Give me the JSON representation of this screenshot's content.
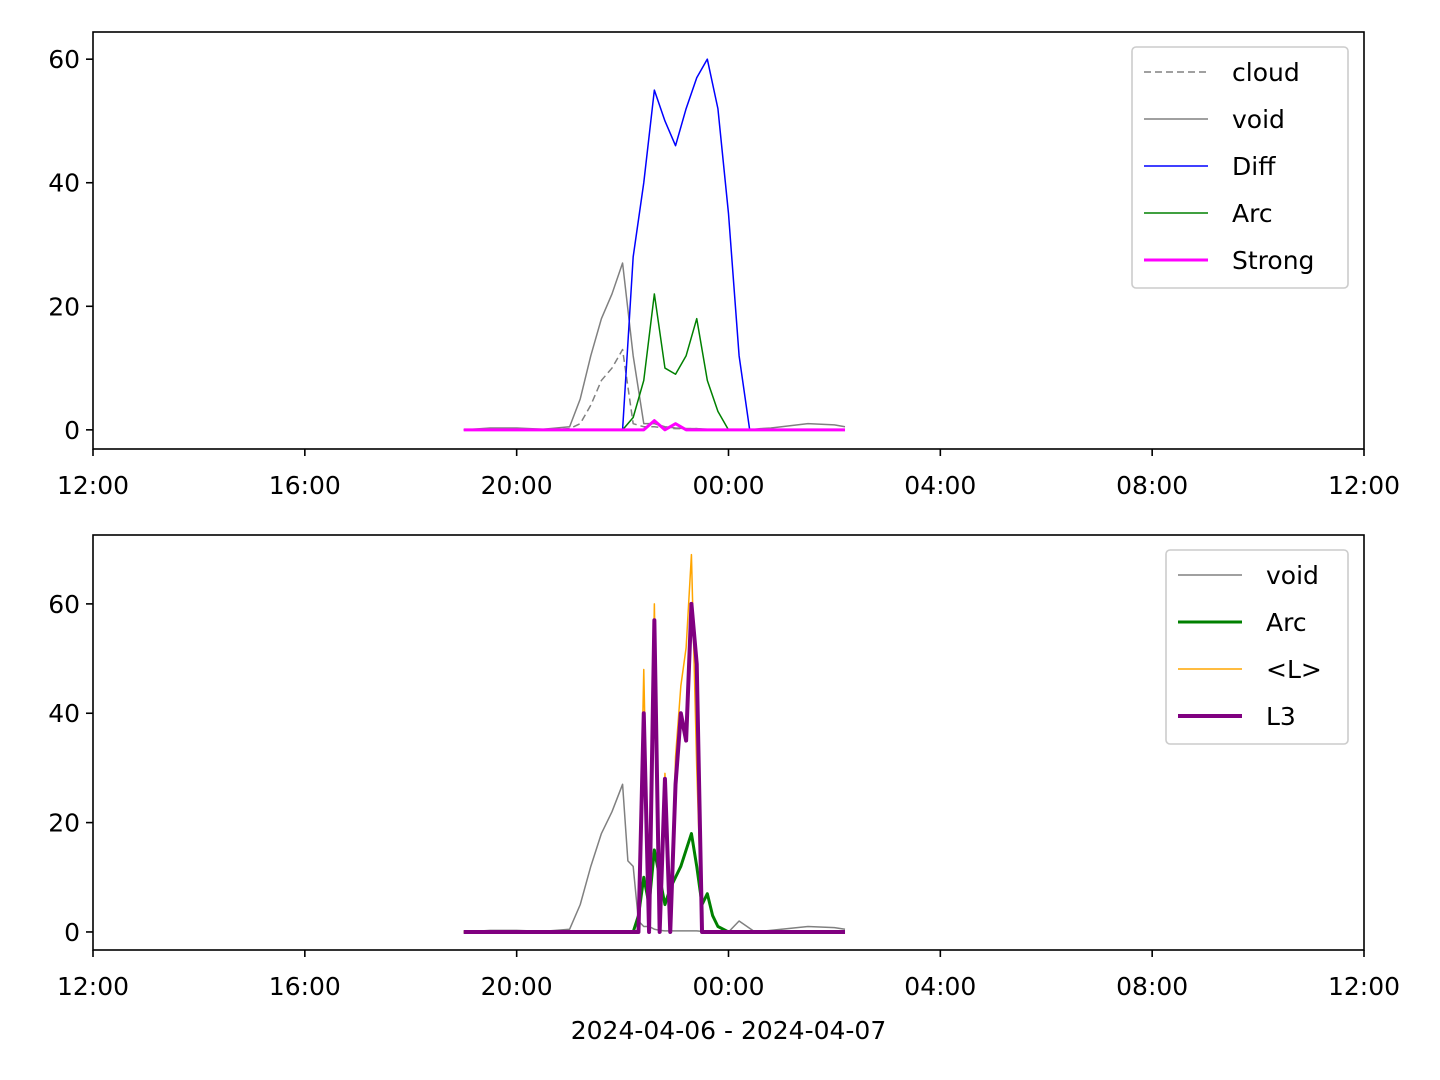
{
  "chart_data": [
    {
      "type": "line",
      "x": [
        7,
        7.5,
        8,
        8.5,
        9,
        9.2,
        9.4,
        9.6,
        9.8,
        10.0,
        10.2,
        10.4,
        10.6,
        10.8,
        11.0,
        11.2,
        11.4,
        11.6,
        11.8,
        12.0,
        12.2,
        12.4,
        12.6,
        12.8,
        13.0,
        13.5,
        14.0,
        14.2
      ],
      "series": [
        {
          "name": "cloud",
          "color": "#808080",
          "dash": true,
          "linewidth": 1.5,
          "values": [
            0,
            0.2,
            0.2,
            0,
            0.2,
            1,
            4,
            8,
            10,
            13,
            1,
            0.5,
            0.5,
            0.3,
            0.2,
            0.2,
            0.2,
            0,
            0,
            0,
            0,
            0,
            0,
            0,
            0,
            0,
            0,
            0
          ]
        },
        {
          "name": "void",
          "color": "#808080",
          "dash": false,
          "linewidth": 1.5,
          "values": [
            0,
            0.3,
            0.3,
            0.1,
            0.5,
            5,
            12,
            18,
            22,
            27,
            12,
            1,
            1,
            0.5,
            0.3,
            0.2,
            0.2,
            0.1,
            0,
            0,
            0,
            0,
            0.2,
            0.3,
            0.5,
            1,
            0.8,
            0.5
          ]
        },
        {
          "name": "Diff",
          "color": "#0000ff",
          "dash": false,
          "linewidth": 1.5,
          "values": [
            null,
            null,
            null,
            null,
            null,
            null,
            null,
            null,
            null,
            0,
            28,
            40,
            55,
            50,
            46,
            52,
            57,
            60,
            52,
            35,
            12,
            0,
            null,
            null,
            null,
            null,
            null,
            null
          ]
        },
        {
          "name": "Arc",
          "color": "#008000",
          "dash": false,
          "linewidth": 1.5,
          "values": [
            null,
            null,
            null,
            null,
            null,
            null,
            null,
            null,
            null,
            0,
            2,
            8,
            22,
            10,
            9,
            12,
            18,
            8,
            3,
            0,
            null,
            null,
            null,
            null,
            null,
            null,
            null,
            null
          ]
        },
        {
          "name": "Strong",
          "color": "#ff00ff",
          "dash": false,
          "linewidth": 3,
          "values": [
            0,
            0,
            0,
            0,
            0,
            0,
            0,
            0,
            0,
            0,
            0,
            0,
            1.5,
            0,
            1,
            0,
            0,
            0,
            0,
            0,
            0,
            0,
            0,
            0,
            0,
            0,
            0,
            0
          ]
        }
      ],
      "xlim": [
        0,
        24
      ],
      "xticks": [
        {
          "value": 0,
          "label": "12:00"
        },
        {
          "value": 4,
          "label": "16:00"
        },
        {
          "value": 8,
          "label": "20:00"
        },
        {
          "value": 12,
          "label": "00:00"
        },
        {
          "value": 16,
          "label": "04:00"
        },
        {
          "value": 20,
          "label": "08:00"
        },
        {
          "value": 24,
          "label": "12:00"
        }
      ],
      "ylim": [
        -3.1,
        64.4
      ],
      "yticks": [
        0,
        20,
        40,
        60
      ],
      "legend": "upper right"
    },
    {
      "type": "line",
      "x": [
        7,
        7.5,
        8,
        8.5,
        9,
        9.2,
        9.4,
        9.6,
        9.8,
        10.0,
        10.1,
        10.2,
        10.3,
        10.4,
        10.5,
        10.6,
        10.7,
        10.8,
        10.9,
        11.0,
        11.1,
        11.2,
        11.3,
        11.4,
        11.5,
        11.6,
        11.7,
        11.8,
        12.0,
        12.2,
        12.5,
        13.0,
        13.5,
        14.0,
        14.2
      ],
      "series": [
        {
          "name": "void",
          "color": "#808080",
          "dash": false,
          "linewidth": 1.5,
          "values": [
            0,
            0.3,
            0.3,
            0.1,
            0.5,
            5,
            12,
            18,
            22,
            27,
            13,
            12,
            2,
            1,
            1,
            0.5,
            0.3,
            0.2,
            0.2,
            0.2,
            0.2,
            0.2,
            0.2,
            0.2,
            0.1,
            0,
            0,
            0,
            0,
            2,
            0,
            0.5,
            1,
            0.8,
            0.5
          ]
        },
        {
          "name": "Arc",
          "color": "#008000",
          "dash": false,
          "linewidth": 3,
          "values": [
            0,
            0,
            0,
            0,
            0,
            0,
            0,
            0,
            0,
            0,
            0,
            0,
            3,
            10,
            5,
            15,
            10,
            5,
            8,
            10,
            12,
            15,
            18,
            12,
            5,
            7,
            3,
            1,
            0,
            0,
            0,
            0,
            0,
            0,
            0
          ]
        },
        {
          "name": "<L>",
          "color": "#ffa500",
          "dash": false,
          "linewidth": 1.5,
          "values": [
            0,
            0,
            0,
            0,
            0,
            0,
            0,
            0,
            0,
            0,
            0,
            0,
            0,
            48,
            0,
            60,
            0,
            29,
            0,
            32,
            45,
            52,
            69,
            30,
            0,
            0,
            0,
            0,
            0,
            0,
            0,
            0,
            0,
            0,
            0
          ]
        },
        {
          "name": "L3",
          "color": "#800080",
          "dash": false,
          "linewidth": 4,
          "values": [
            0,
            0,
            0,
            0,
            0,
            0,
            0,
            0,
            0,
            0,
            0,
            0,
            0,
            40,
            0,
            57,
            0,
            28,
            0,
            27,
            40,
            35,
            60,
            49,
            0,
            0,
            0,
            0,
            0,
            0,
            0,
            0,
            0,
            0,
            0
          ]
        }
      ],
      "xlim": [
        0,
        24
      ],
      "xticks": [
        {
          "value": 0,
          "label": "12:00"
        },
        {
          "value": 4,
          "label": "16:00"
        },
        {
          "value": 8,
          "label": "20:00"
        },
        {
          "value": 12,
          "label": "00:00"
        },
        {
          "value": 16,
          "label": "04:00"
        },
        {
          "value": 20,
          "label": "08:00"
        },
        {
          "value": 24,
          "label": "12:00"
        }
      ],
      "ylim": [
        -3.3,
        72.6
      ],
      "yticks": [
        0,
        20,
        40,
        60
      ],
      "x_label": "2024-04-06 - 2024-04-07",
      "legend": "upper right"
    }
  ]
}
